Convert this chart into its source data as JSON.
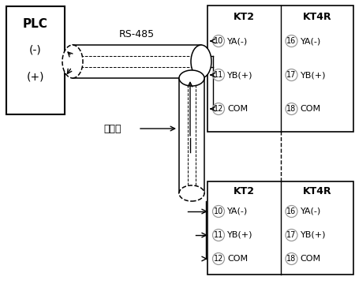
{
  "bg_color": "#ffffff",
  "line_color": "#000000",
  "gray_color": "#999999",
  "plc_text": [
    "PLC",
    "(-)",
    "(+)"
  ],
  "rs485_label": "RS-485",
  "shield_label": "실드선",
  "kt2_label": "KT2",
  "kt4r_label": "KT4R",
  "row_nums_left": [
    "10",
    "11",
    "12"
  ],
  "row_labels_left": [
    "YA(-)",
    "YB(+)",
    "COM"
  ],
  "row_nums_right": [
    "16",
    "17",
    "18"
  ],
  "row_labels_right": [
    "YA(-)",
    "YB(+)",
    "COM"
  ]
}
